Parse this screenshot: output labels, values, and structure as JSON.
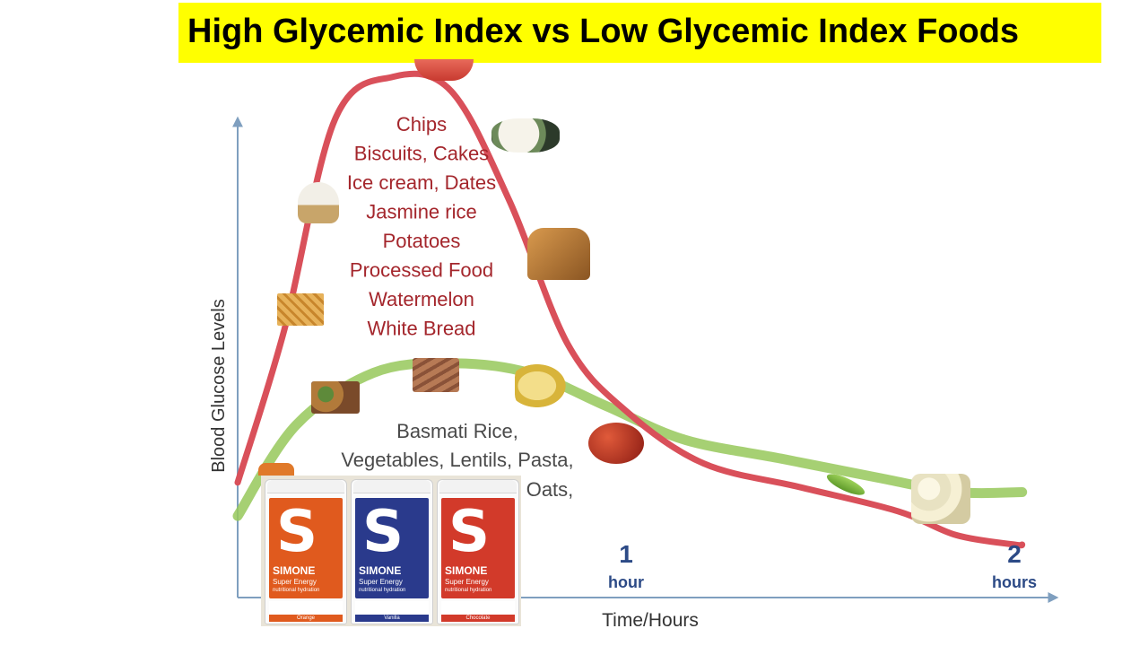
{
  "title": "High Glycemic Index vs Low Glycemic Index Foods",
  "colors": {
    "banner": "#ffff00",
    "high_curve": "#d9505a",
    "low_curve": "#96c85a",
    "axis": "#7f9fbf",
    "text": "#a4262c",
    "tick_text": "#2c4a86"
  },
  "chart_data": {
    "type": "line",
    "xlabel": "Time/Hours",
    "ylabel": "Blood Glucose Levels",
    "x_ticks": [
      {
        "value": 1,
        "label": "1",
        "sublabel": "hour"
      },
      {
        "value": 2,
        "label": "2",
        "sublabel": "hours"
      }
    ],
    "series": [
      {
        "key": "high_gi",
        "color": "#d9505a",
        "foods_text": [
          "Chips",
          "Biscuits, Cakes",
          "Ice cream, Dates",
          "Jasmine rice",
          "Potatoes",
          "Processed Food",
          "Watermelon",
          "White Bread"
        ],
        "curve": [
          [
            0,
            0.13
          ],
          [
            0.12,
            0.45
          ],
          [
            0.25,
            0.89
          ],
          [
            0.4,
            0.98
          ],
          [
            0.55,
            0.95
          ],
          [
            0.7,
            0.72
          ],
          [
            0.85,
            0.42
          ],
          [
            1.0,
            0.28
          ],
          [
            1.2,
            0.17
          ],
          [
            1.45,
            0.12
          ],
          [
            1.7,
            0.07
          ],
          [
            1.85,
            0.02
          ],
          [
            2.0,
            0.0
          ],
          [
            2.02,
            0.0
          ]
        ]
      },
      {
        "key": "low_gi",
        "color": "#96c85a",
        "foods_text": [
          "Basmati Rice,",
          "Vegetables, Lentils, Pasta,",
          "Oats,"
        ],
        "curve": [
          [
            0,
            0.06
          ],
          [
            0.15,
            0.25
          ],
          [
            0.35,
            0.36
          ],
          [
            0.55,
            0.38
          ],
          [
            0.75,
            0.36
          ],
          [
            0.95,
            0.29
          ],
          [
            1.15,
            0.22
          ],
          [
            1.4,
            0.18
          ],
          [
            1.65,
            0.14
          ],
          [
            1.85,
            0.11
          ],
          [
            2.02,
            0.11
          ]
        ]
      }
    ]
  },
  "food_icons": [
    "watermelon",
    "sushi",
    "ice-cream",
    "bread-loaf",
    "fries",
    "salad",
    "granola",
    "banana",
    "apple",
    "pea-pod",
    "cauliflower",
    "carrot"
  ],
  "products": [
    {
      "brand": "SIMONE",
      "sub": "Super Energy",
      "tag": "nutritional hydration",
      "flavor": "Orange",
      "color": "#e05a1e"
    },
    {
      "brand": "SIMONE",
      "sub": "Super Energy",
      "tag": "nutritional hydration",
      "flavor": "Vanilla",
      "color": "#2a3a8c"
    },
    {
      "brand": "SIMONE",
      "sub": "Super Energy",
      "tag": "nutritional hydration",
      "flavor": "Chocolate",
      "color": "#d23a2a"
    }
  ]
}
